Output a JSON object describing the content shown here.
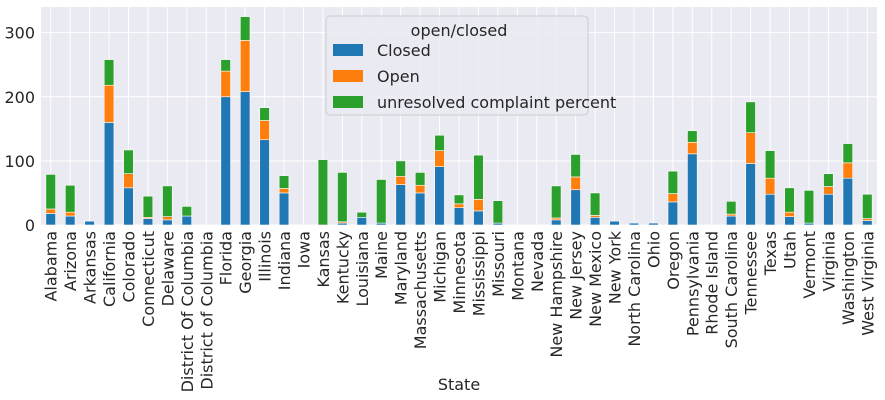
{
  "chart_data": {
    "type": "bar",
    "stacked": true,
    "title": "",
    "xlabel": "State",
    "ylabel": "",
    "ylim": [
      0,
      340
    ],
    "yticks": [
      0,
      100,
      200,
      300
    ],
    "grid": true,
    "legend": {
      "title": "open/closed",
      "placement": "top-center"
    },
    "categories": [
      "Alabama",
      "Arizona",
      "Arkansas",
      "California",
      "Colorado",
      "Connecticut",
      "Delaware",
      "District Of Columbia",
      "District of Columbia",
      "Florida",
      "Georgia",
      "Illinois",
      "Indiana",
      "Iowa",
      "Kansas",
      "Kentucky",
      "Louisiana",
      "Maine",
      "Maryland",
      "Massachusetts",
      "Michigan",
      "Minnesota",
      "Mississippi",
      "Missouri",
      "Montana",
      "Nevada",
      "New Hampshire",
      "New Jersey",
      "New Mexico",
      "New York",
      "North Carolina",
      "Ohio",
      "Oregon",
      "Pennsylvania",
      "Rhode Island",
      "South Carolina",
      "Tennessee",
      "Texas",
      "Utah",
      "Vermont",
      "Virginia",
      "Washington",
      "West Virginia"
    ],
    "series": [
      {
        "name": "Closed",
        "color": "#1f77b4",
        "values": [
          18,
          14,
          6,
          160,
          58,
          10,
          8,
          14,
          0,
          200,
          208,
          133,
          50,
          0,
          0,
          3,
          12,
          3,
          63,
          50,
          91,
          27,
          22,
          3,
          0,
          0,
          8,
          55,
          12,
          6,
          3,
          3,
          36,
          111,
          0,
          14,
          96,
          48,
          13,
          3,
          48,
          73,
          7
        ]
      },
      {
        "name": "Open",
        "color": "#ff7f0e",
        "values": [
          7,
          6,
          0,
          58,
          22,
          2,
          5,
          0,
          0,
          40,
          80,
          30,
          7,
          0,
          0,
          2,
          0,
          0,
          13,
          12,
          25,
          6,
          18,
          0,
          0,
          0,
          3,
          20,
          3,
          0,
          0,
          0,
          13,
          18,
          0,
          3,
          48,
          25,
          7,
          0,
          12,
          24,
          3
        ]
      },
      {
        "name": "unresolved complaint percent",
        "color": "#2ca02c",
        "values": [
          54,
          42,
          0,
          40,
          37,
          33,
          48,
          15,
          0,
          18,
          37,
          20,
          20,
          0,
          102,
          77,
          8,
          68,
          24,
          20,
          24,
          14,
          69,
          35,
          0,
          0,
          50,
          35,
          35,
          0,
          0,
          0,
          35,
          18,
          0,
          20,
          48,
          43,
          38,
          51,
          20,
          30,
          38
        ]
      }
    ]
  }
}
